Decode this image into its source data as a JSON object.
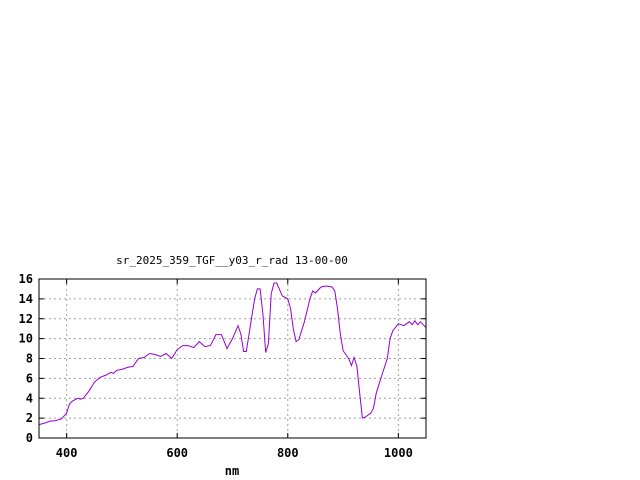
{
  "chart_data": {
    "type": "line",
    "title": "sr_2025_359_TGF__y03_r_rad 13-00-00",
    "xlabel": "nm",
    "ylabel": "",
    "xlim": [
      350,
      1050
    ],
    "ylim": [
      0,
      16
    ],
    "xticks": [
      400,
      600,
      800,
      1000
    ],
    "yticks": [
      0,
      2,
      4,
      6,
      8,
      10,
      12,
      14,
      16
    ],
    "grid": true,
    "line_color": "#9400d3",
    "series": [
      {
        "x": [
          350,
          360,
          370,
          380,
          390,
          400,
          405,
          410,
          420,
          425,
          430,
          440,
          450,
          460,
          470,
          480,
          485,
          490,
          500,
          510,
          520,
          530,
          540,
          550,
          560,
          570,
          580,
          590,
          600,
          610,
          620,
          630,
          640,
          650,
          660,
          670,
          680,
          690,
          700,
          710,
          715,
          720,
          725,
          730,
          740,
          745,
          750,
          755,
          760,
          765,
          770,
          775,
          780,
          790,
          800,
          805,
          810,
          815,
          820,
          830,
          840,
          845,
          850,
          860,
          870,
          880,
          885,
          890,
          895,
          900,
          910,
          915,
          920,
          925,
          930,
          935,
          940,
          950,
          955,
          960,
          970,
          980,
          985,
          990,
          1000,
          1010,
          1020,
          1025,
          1030,
          1035,
          1040,
          1050
        ],
        "y": [
          1.35,
          1.5,
          1.7,
          1.75,
          1.9,
          2.5,
          3.4,
          3.7,
          4.0,
          3.9,
          4.0,
          4.7,
          5.6,
          6.1,
          6.3,
          6.6,
          6.5,
          6.8,
          6.9,
          7.1,
          7.2,
          8.0,
          8.1,
          8.5,
          8.4,
          8.2,
          8.5,
          8.0,
          8.9,
          9.3,
          9.3,
          9.1,
          9.7,
          9.2,
          9.3,
          10.4,
          10.4,
          9.0,
          10.0,
          11.3,
          10.5,
          8.7,
          8.7,
          10.5,
          14.0,
          15.0,
          15.0,
          12.5,
          8.6,
          9.5,
          14.5,
          15.6,
          15.6,
          14.3,
          14.0,
          13.0,
          11.0,
          9.7,
          9.9,
          11.7,
          14.0,
          14.8,
          14.6,
          15.2,
          15.3,
          15.2,
          14.8,
          13.0,
          10.5,
          8.8,
          8.0,
          7.3,
          8.1,
          7.2,
          4.5,
          2.0,
          2.1,
          2.5,
          3.0,
          4.5,
          6.3,
          8.0,
          10.0,
          10.8,
          11.5,
          11.3,
          11.7,
          11.4,
          11.8,
          11.4,
          11.7,
          11.1
        ]
      }
    ]
  }
}
